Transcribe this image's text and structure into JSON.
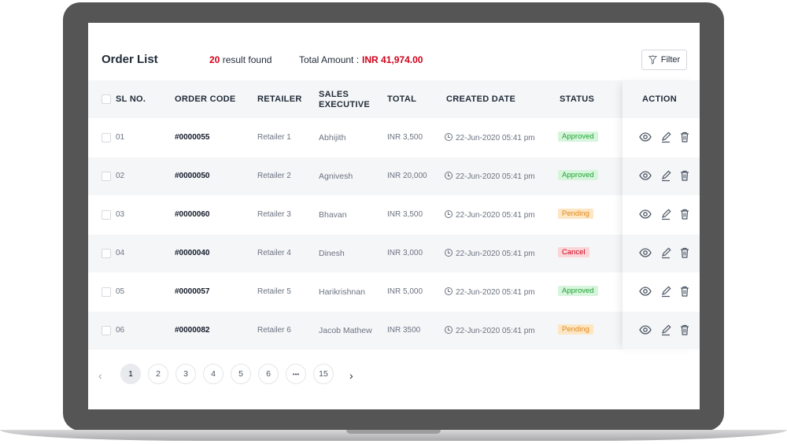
{
  "header": {
    "title": "Order List",
    "result_count": "20",
    "result_text": "result found",
    "total_label": "Total Amount :",
    "total_amount": "INR 41,974.00",
    "filter_label": "Filter"
  },
  "table": {
    "headers": {
      "sl": "SL NO.",
      "code": "ORDER CODE",
      "retailer": "RETAILER",
      "exec_line1": "SALES",
      "exec_line2": "EXECUTIVE",
      "total": "TOTAL",
      "created": "CREATED DATE",
      "status": "STATUS",
      "action": "ACTION"
    },
    "rows": [
      {
        "sl": "01",
        "code": "#0000055",
        "retailer": "Retailer 1",
        "exec": "Abhijith",
        "total": "INR 3,500",
        "created": "22-Jun-2020 05:41 pm",
        "status": "Approved",
        "status_type": "approved"
      },
      {
        "sl": "02",
        "code": "#0000050",
        "retailer": "Retailer 2",
        "exec": "Agnivesh",
        "total": "INR 20,000",
        "created": "22-Jun-2020 05:41 pm",
        "status": "Approved",
        "status_type": "approved"
      },
      {
        "sl": "03",
        "code": "#0000060",
        "retailer": "Retailer 3",
        "exec": "Bhavan",
        "total": "INR 3,500",
        "created": "22-Jun-2020 05:41 pm",
        "status": "Pending",
        "status_type": "pending"
      },
      {
        "sl": "04",
        "code": "#0000040",
        "retailer": "Retailer 4",
        "exec": "Dinesh",
        "total": "INR 3,000",
        "created": "22-Jun-2020 05:41 pm",
        "status": "Cancel",
        "status_type": "cancel"
      },
      {
        "sl": "05",
        "code": "#0000057",
        "retailer": "Retailer 5",
        "exec": "Harikrishnan",
        "total": "INR 5,000",
        "created": "22-Jun-2020 05:41 pm",
        "status": "Approved",
        "status_type": "approved"
      },
      {
        "sl": "06",
        "code": "#0000082",
        "retailer": "Retailer 6",
        "exec": "Jacob Mathew",
        "total": "INR 3500",
        "created": "22-Jun-2020 05:41 pm",
        "status": "Pending",
        "status_type": "pending"
      }
    ],
    "action_icons": [
      "eye-icon",
      "edit-icon",
      "trash-icon"
    ]
  },
  "pagination": {
    "prev_icon": "chevron-left-icon",
    "next_icon": "chevron-right-icon",
    "pages": [
      "1",
      "2",
      "3",
      "4",
      "5",
      "6",
      "•••",
      "15"
    ],
    "active": "1"
  },
  "colors": {
    "accent_red": "#d0021b",
    "approved": "#21a336",
    "pending": "#e08a1a",
    "cancel": "#d0021b",
    "laptop_frame": "#555556"
  }
}
